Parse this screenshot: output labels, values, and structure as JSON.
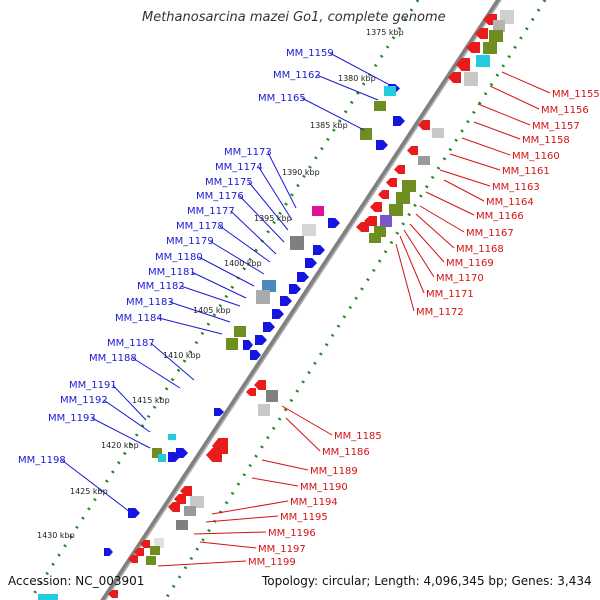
{
  "title": "Methanosarcina mazei Go1, complete genome",
  "footer": {
    "accession": "Accession: NC_003901",
    "summary": "Topology: circular; Length: 4,096,345 bp; Genes: 3,434"
  },
  "colors": {
    "forward_gene": "#1515e0",
    "reverse_gene": "#e81c1c",
    "leader_line_left": "#1a1ad6",
    "leader_line_right": "#d41212",
    "backbone": "#808080",
    "tick_dots": "#1e8a1e",
    "olive_box": "#6e8e22",
    "cyan_box": "#22ccdd",
    "grey_box": "#8c8c8c",
    "magenta_box": "#e0109a",
    "purple_box": "#7a58c8",
    "steelblue_box": "#4a8ac0"
  },
  "kbp_marks": [
    "1375 kbp",
    "1380 kbp",
    "1385 kbp",
    "1390 kbp",
    "1395 kbp",
    "1400 kbp",
    "1405 kbp",
    "1410 kbp",
    "1415 kbp",
    "1420 kbp",
    "1425 kbp",
    "1430 kbp"
  ],
  "left_labels": [
    "MM_1159",
    "MM_1162",
    "MM_1165",
    "MM_1173",
    "MM_1174",
    "MM_1175",
    "MM_1176",
    "MM_1177",
    "MM_1178",
    "MM_1179",
    "MM_1180",
    "MM_1181",
    "MM_1182",
    "MM_1183",
    "MM_1184",
    "MM_1187",
    "MM_1188",
    "MM_1191",
    "MM_1192",
    "MM_1193",
    "MM_1198"
  ],
  "right_labels_top": [
    "MM_1155",
    "MM_1156",
    "MM_1157",
    "MM_1158",
    "MM_1160",
    "MM_1161",
    "MM_1163",
    "MM_1164",
    "MM_1166",
    "MM_1167",
    "MM_1168",
    "MM_1169",
    "MM_1170",
    "MM_1171",
    "MM_1172"
  ],
  "right_labels_bottom": [
    "MM_1185",
    "MM_1186",
    "MM_1189",
    "MM_1190",
    "MM_1194",
    "MM_1195",
    "MM_1196",
    "MM_1197",
    "MM_1199"
  ]
}
